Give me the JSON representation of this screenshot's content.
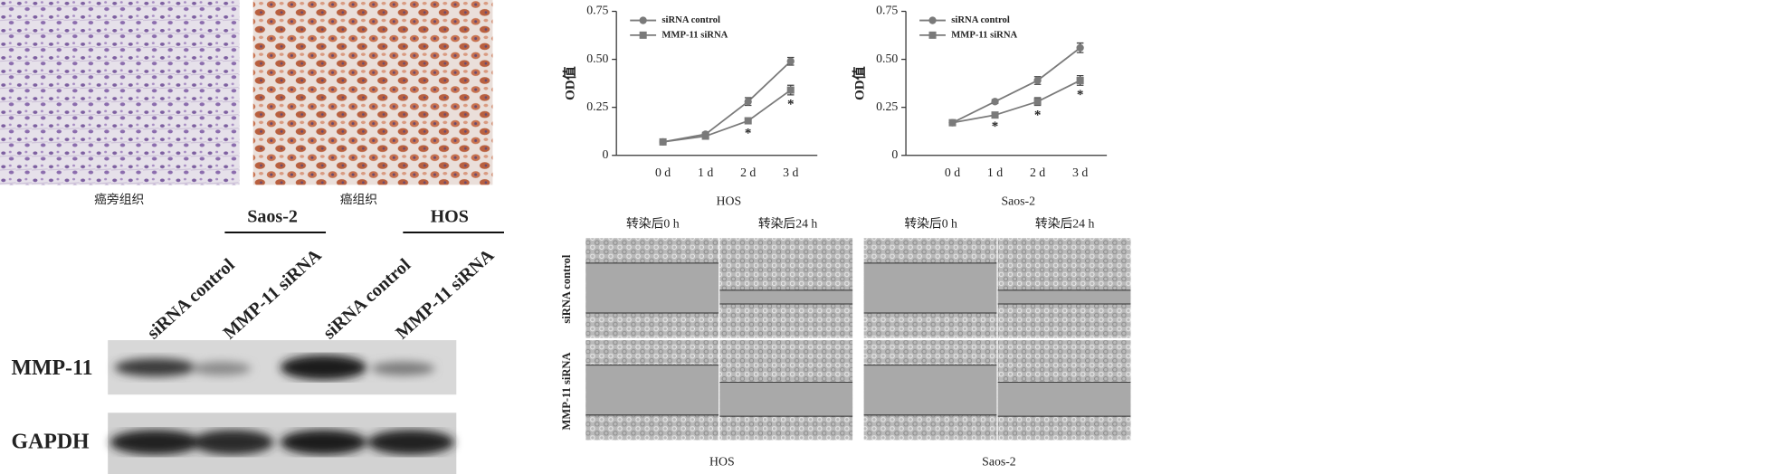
{
  "histology": {
    "captions": [
      "癌旁组织",
      "癌组织"
    ]
  },
  "western_blot": {
    "groups": [
      "Saos-2",
      "HOS"
    ],
    "lanes": [
      "siRNA control",
      "MMP-11 siRNA",
      "siRNA control",
      "MMP-11 siRNA"
    ],
    "rows": [
      "MMP-11",
      "GAPDH"
    ]
  },
  "chart_data": [
    {
      "type": "line",
      "x_label": "HOS",
      "y_label": "OD值",
      "categories": [
        "0 d",
        "1 d",
        "2 d",
        "3 d"
      ],
      "ylim": [
        0,
        0.75
      ],
      "yticks": [
        0,
        0.25,
        {
          "value": 0.5,
          "label": "0.50"
        },
        0.75
      ],
      "legend": "upper left",
      "series": [
        {
          "name": "siRNA control",
          "color": "#7a7a7a",
          "marker": "circle",
          "values": [
            0.07,
            0.11,
            0.28,
            0.49
          ],
          "errors": [
            0.005,
            0.01,
            0.02,
            0.02
          ]
        },
        {
          "name": "MMP-11 siRNA",
          "color": "#7a7a7a",
          "marker": "square",
          "values": [
            0.07,
            0.1,
            0.18,
            0.34
          ],
          "errors": [
            0.005,
            0.01,
            0.015,
            0.025
          ],
          "significance": [
            null,
            null,
            "*",
            "*"
          ]
        }
      ]
    },
    {
      "type": "line",
      "x_label": "Saos-2",
      "y_label": "OD值",
      "categories": [
        "0 d",
        "1 d",
        "2 d",
        "3 d"
      ],
      "ylim": [
        0,
        0.75
      ],
      "yticks": [
        0,
        0.25,
        {
          "value": 0.5,
          "label": "0.50"
        },
        0.75
      ],
      "legend": "upper left",
      "series": [
        {
          "name": "siRNA control",
          "color": "#7a7a7a",
          "marker": "circle",
          "values": [
            0.17,
            0.28,
            0.39,
            0.56
          ],
          "errors": [
            0.005,
            0.01,
            0.02,
            0.025
          ]
        },
        {
          "name": "MMP-11 siRNA",
          "color": "#7a7a7a",
          "marker": "square",
          "values": [
            0.17,
            0.21,
            0.28,
            0.39
          ],
          "errors": [
            0.005,
            0.01,
            0.02,
            0.025
          ],
          "significance": [
            null,
            "*",
            "*",
            "*"
          ]
        }
      ]
    }
  ],
  "wound_healing": {
    "row_labels": [
      "siRNA control",
      "MMP-11 siRNA"
    ],
    "panels": [
      {
        "caption": "HOS",
        "columns": [
          "转染后0 h",
          "转染后24 h"
        ]
      },
      {
        "caption": "Saos-2",
        "columns": [
          "转染后0 h",
          "转染后24 h"
        ]
      }
    ]
  }
}
